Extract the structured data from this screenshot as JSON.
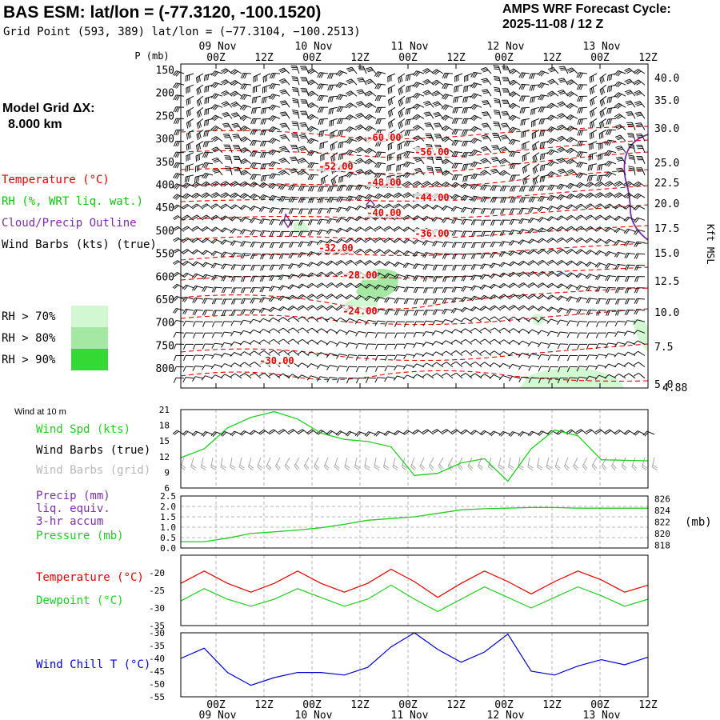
{
  "header": {
    "title_left": "BAS ESM:  lat/lon = (-77.3120, -100.1520)",
    "grid_point": "Grid Point (593, 389) lat/lon = (−77.3104, −100.2513)",
    "cycle_label": "AMPS WRF Forecast Cycle:",
    "cycle_value": "2025-11-08 / 12  Z"
  },
  "sidebar": {
    "model_grid_label": "Model Grid ΔX:",
    "model_grid_value": "8.000 km",
    "legend_temperature": "Temperature (°C)",
    "legend_rh": "RH (%, WRT liq. wat.)",
    "legend_cloud": "Cloud/Precip Outline",
    "legend_wind": "Wind Barbs (kts) (true)",
    "rh70": "RH > 70%",
    "rh80": "RH > 80%",
    "rh90": "RH > 90%"
  },
  "colors": {
    "temperature": "#e00000",
    "rh_label": "#10c010",
    "cloud": "#7a2fa8",
    "rh70": "#d2f8d2",
    "rh80": "#a4e8a4",
    "rh90": "#34d934",
    "wind_speed": "#22cc22",
    "dewpoint": "#22cc22",
    "wind_chill": "#0000cc",
    "grid_barbs": "#a8a8a8"
  },
  "chart_data": [
    {
      "type": "heatmap",
      "name": "cross-section",
      "ylabel": "P (mb)",
      "ylabel_right": "Kft MSL",
      "time_ticks": [
        "00Z",
        "12Z",
        "00Z",
        "12Z",
        "00Z",
        "12Z",
        "00Z",
        "12Z",
        "00Z",
        "12Z"
      ],
      "date_labels": [
        "09 Nov",
        "10 Nov",
        "11 Nov",
        "12 Nov",
        "13 Nov"
      ],
      "pressure_ticks": [
        "150",
        "200",
        "250",
        "300",
        "350",
        "400",
        "450",
        "500",
        "550",
        "600",
        "650",
        "700",
        "750",
        "800"
      ],
      "height_ticks": [
        "40.0",
        "35.0",
        "30.0",
        "25.0",
        "22.5",
        "20.0",
        "17.5",
        "15.0",
        "12.5",
        "10.0",
        "7.5",
        "5.0"
      ],
      "surface_height_label": "4.88",
      "temperature_labels": [
        "-60.00",
        "-56.00",
        "-52.00",
        "-48.00",
        "-44.00",
        "-40.00",
        "-36.00",
        "-32.00",
        "-28.00",
        "-24.00",
        "-30.00"
      ]
    },
    {
      "type": "line",
      "name": "wind-10m",
      "title": "Wind at 10 m",
      "legend": [
        "Wind Spd (kts)",
        "Wind Barbs (true)",
        "Wind Barbs (grid)"
      ],
      "yticks": [
        "21",
        "18",
        "15",
        "12",
        "9",
        "6"
      ],
      "ylim": [
        6,
        21
      ],
      "x_hours": [
        0,
        6,
        12,
        18,
        24,
        30,
        36,
        42,
        48,
        54,
        60,
        66,
        72,
        78,
        84,
        90,
        96,
        102,
        108,
        114,
        120
      ],
      "series": [
        {
          "name": "Wind Spd (kts)",
          "values": [
            11.8,
            13.5,
            17.5,
            19.5,
            20.6,
            19.2,
            16.5,
            15.3,
            14.9,
            13.9,
            8.4,
            8.8,
            10.8,
            11.6,
            7.3,
            13.5,
            17.1,
            16.0,
            11.4,
            11.3,
            11.2
          ]
        }
      ]
    },
    {
      "type": "line",
      "name": "precip-pressure",
      "legend": [
        "Precip (mm)",
        "liq. equiv.",
        "3-hr accum",
        "Pressure (mb)"
      ],
      "yticks_left": [
        "2.5",
        "2.0",
        "1.5",
        "1.0",
        "0.5",
        "0.0"
      ],
      "yticks_right": [
        "826",
        "824",
        "822",
        "820",
        "818"
      ],
      "ylabel_right": "(mb)",
      "ylim_left": [
        0,
        2.5
      ],
      "ylim_right": [
        817.5,
        826.5
      ],
      "x_hours": [
        0,
        6,
        12,
        18,
        24,
        30,
        36,
        42,
        48,
        54,
        60,
        66,
        72,
        78,
        84,
        90,
        96,
        102,
        108,
        114,
        120
      ],
      "series": [
        {
          "name": "Precip (mm)",
          "values": [
            0,
            0,
            0,
            0,
            0,
            0,
            0,
            0,
            0,
            0,
            0,
            0,
            0,
            0,
            0,
            0,
            0,
            0,
            0,
            0,
            0
          ]
        },
        {
          "name": "Pressure (mb)",
          "values": [
            818.6,
            818.6,
            819.2,
            820.0,
            820.3,
            820.6,
            821.0,
            821.6,
            822.3,
            822.6,
            822.9,
            823.5,
            824.1,
            824.3,
            824.4,
            824.5,
            824.5,
            824.4,
            824.4,
            824.4,
            824.4
          ]
        }
      ]
    },
    {
      "type": "line",
      "name": "temp-dewpoint",
      "legend": [
        "Temperature (°C)",
        "Dewpoint (°C)"
      ],
      "yticks": [
        "-20",
        "-25",
        "-30",
        "-35"
      ],
      "ylim": [
        -35,
        -15
      ],
      "x_hours": [
        0,
        6,
        12,
        18,
        24,
        30,
        36,
        42,
        48,
        54,
        60,
        66,
        72,
        78,
        84,
        90,
        96,
        102,
        108,
        114,
        120
      ],
      "series": [
        {
          "name": "Temperature (°C)",
          "values": [
            -23.0,
            -19.5,
            -23.0,
            -25.5,
            -23.0,
            -19.5,
            -23.0,
            -25.5,
            -23.0,
            -19.0,
            -22.5,
            -27.0,
            -23.0,
            -19.5,
            -22.5,
            -26.0,
            -22.5,
            -19.5,
            -22.0,
            -25.5,
            -23.5
          ]
        },
        {
          "name": "Dewpoint (°C)",
          "values": [
            -28.0,
            -24.5,
            -27.5,
            -29.5,
            -27.5,
            -24.5,
            -27.0,
            -29.5,
            -27.5,
            -23.5,
            -27.5,
            -31.0,
            -27.5,
            -24.0,
            -27.0,
            -30.0,
            -27.0,
            -24.0,
            -26.5,
            -29.5,
            -27.5
          ]
        }
      ]
    },
    {
      "type": "line",
      "name": "wind-chill",
      "legend": [
        "Wind Chill T (°C)"
      ],
      "yticks": [
        "-30",
        "-35",
        "-40",
        "-45",
        "-50",
        "-55"
      ],
      "ylim": [
        -55,
        -30
      ],
      "x_hours": [
        0,
        6,
        12,
        18,
        24,
        30,
        36,
        42,
        48,
        54,
        60,
        66,
        72,
        78,
        84,
        90,
        96,
        102,
        108,
        114,
        120
      ],
      "series": [
        {
          "name": "Wind Chill T (°C)",
          "values": [
            -40,
            -36,
            -45.5,
            -50.5,
            -47.5,
            -45.5,
            -45.5,
            -46.5,
            -43.5,
            -35.5,
            -30,
            -36.5,
            -41.5,
            -37.5,
            -30.5,
            -45.0,
            -46.5,
            -43.0,
            -40.5,
            -42.5,
            -39.5
          ]
        }
      ]
    }
  ]
}
